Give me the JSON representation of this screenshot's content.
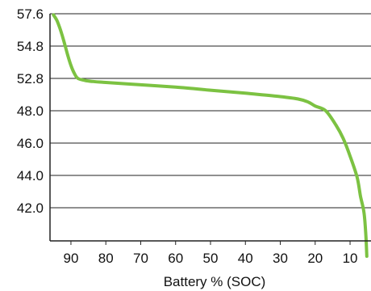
{
  "chart_data": {
    "type": "line",
    "title": "",
    "xlabel": "Battery % (SOC)",
    "ylabel": "",
    "x_reversed": true,
    "xlim": [
      96,
      4
    ],
    "x_ticks": [
      90,
      80,
      70,
      60,
      50,
      40,
      30,
      20,
      10
    ],
    "y_ticks": [
      "57.6",
      "54.8",
      "52.8",
      "48.0",
      "46.0",
      "44.0",
      "42.0"
    ],
    "grid": "horizontal",
    "line_color": "#7cc242",
    "series": [
      {
        "values": [
          {
            "x": 95,
            "y": 57.5
          },
          {
            "x": 94,
            "y": 57.0
          },
          {
            "x": 93,
            "y": 56.2
          },
          {
            "x": 92,
            "y": 55.2
          },
          {
            "x": 91,
            "y": 54.3
          },
          {
            "x": 90,
            "y": 53.6
          },
          {
            "x": 89,
            "y": 53.1
          },
          {
            "x": 88,
            "y": 52.8
          },
          {
            "x": 86,
            "y": 52.5
          },
          {
            "x": 84,
            "y": 52.35
          },
          {
            "x": 80,
            "y": 52.2
          },
          {
            "x": 70,
            "y": 51.85
          },
          {
            "x": 60,
            "y": 51.5
          },
          {
            "x": 50,
            "y": 51.05
          },
          {
            "x": 40,
            "y": 50.6
          },
          {
            "x": 30,
            "y": 50.1
          },
          {
            "x": 25,
            "y": 49.75
          },
          {
            "x": 22,
            "y": 49.3
          },
          {
            "x": 20,
            "y": 48.7
          },
          {
            "x": 17,
            "y": 48.0
          },
          {
            "x": 14,
            "y": 47.1
          },
          {
            "x": 12,
            "y": 46.3
          },
          {
            "x": 10,
            "y": 45.2
          },
          {
            "x": 8,
            "y": 43.9
          },
          {
            "x": 7,
            "y": 42.7
          },
          {
            "x": 6,
            "y": 41.7
          },
          {
            "x": 5.5,
            "y": 40.4
          },
          {
            "x": 5.2,
            "y": 39.0
          }
        ]
      }
    ]
  }
}
